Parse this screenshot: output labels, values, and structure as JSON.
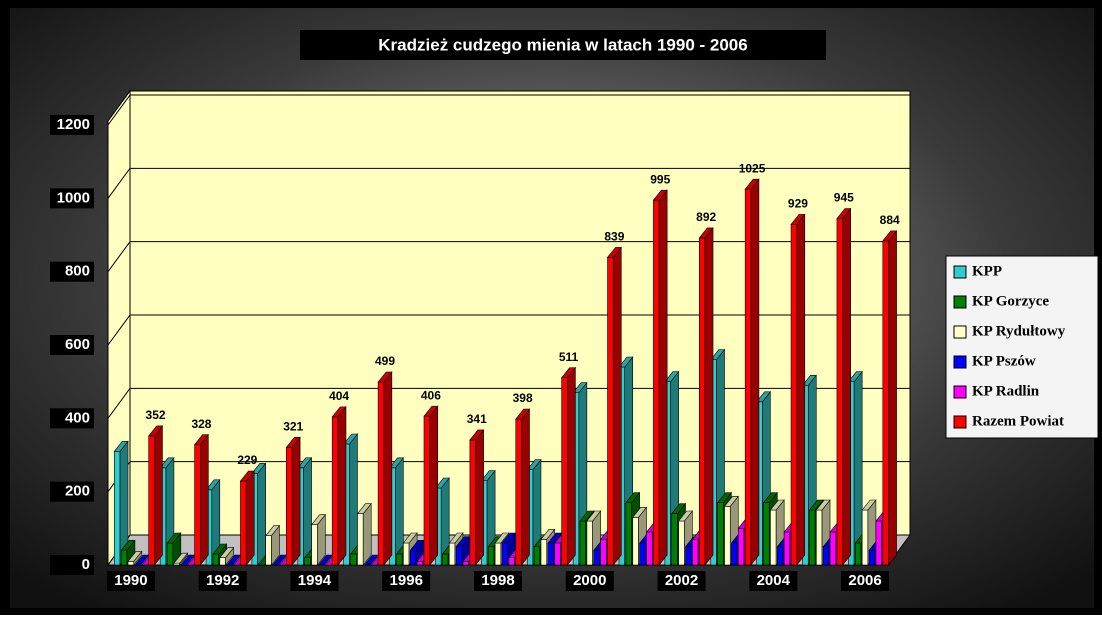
{
  "chart_data": {
    "type": "bar3d",
    "title": "Kradzież cudzego mienia w latach 1990 - 2006",
    "categories": [
      "1990",
      null,
      "1992",
      null,
      "1994",
      null,
      "1996",
      null,
      "1998",
      null,
      "2000",
      null,
      "2002",
      null,
      "2004",
      null,
      "2006"
    ],
    "series": [
      {
        "name": "KPP",
        "color": "#33cccc",
        "values": [
          310,
          265,
          205,
          250,
          265,
          330,
          265,
          210,
          230,
          260,
          470,
          540,
          500,
          560,
          445,
          490,
          500
        ]
      },
      {
        "name": "KP Gorzyce",
        "color": "#008000",
        "values": [
          40,
          60,
          30,
          0,
          20,
          30,
          30,
          30,
          50,
          50,
          120,
          170,
          140,
          170,
          170,
          150,
          60
        ]
      },
      {
        "name": "KP Rydułtowy",
        "color": "#ffffcc",
        "values": [
          10,
          5,
          20,
          80,
          110,
          140,
          60,
          60,
          60,
          70,
          120,
          130,
          120,
          160,
          150,
          150,
          150
        ]
      },
      {
        "name": "KP Pszów",
        "color": "#0000ff",
        "values": [
          0,
          0,
          0,
          0,
          0,
          0,
          40,
          50,
          60,
          60,
          40,
          60,
          50,
          60,
          50,
          50,
          40
        ]
      },
      {
        "name": "KP Radlin",
        "color": "#ff00ff",
        "values": [
          0,
          0,
          0,
          0,
          0,
          0,
          10,
          10,
          20,
          60,
          70,
          90,
          70,
          100,
          90,
          90,
          120
        ]
      },
      {
        "name": "Razem Powiat",
        "color": "#ff0000",
        "values": [
          352,
          328,
          229,
          321,
          404,
          499,
          406,
          341,
          398,
          511,
          839,
          995,
          892,
          1025,
          929,
          945,
          884
        ],
        "value_labels": true
      }
    ],
    "ylim": [
      0,
      1200
    ],
    "yticks": [
      0,
      200,
      400,
      600,
      800,
      1000,
      1200
    ],
    "grid": true,
    "legend": "right"
  }
}
